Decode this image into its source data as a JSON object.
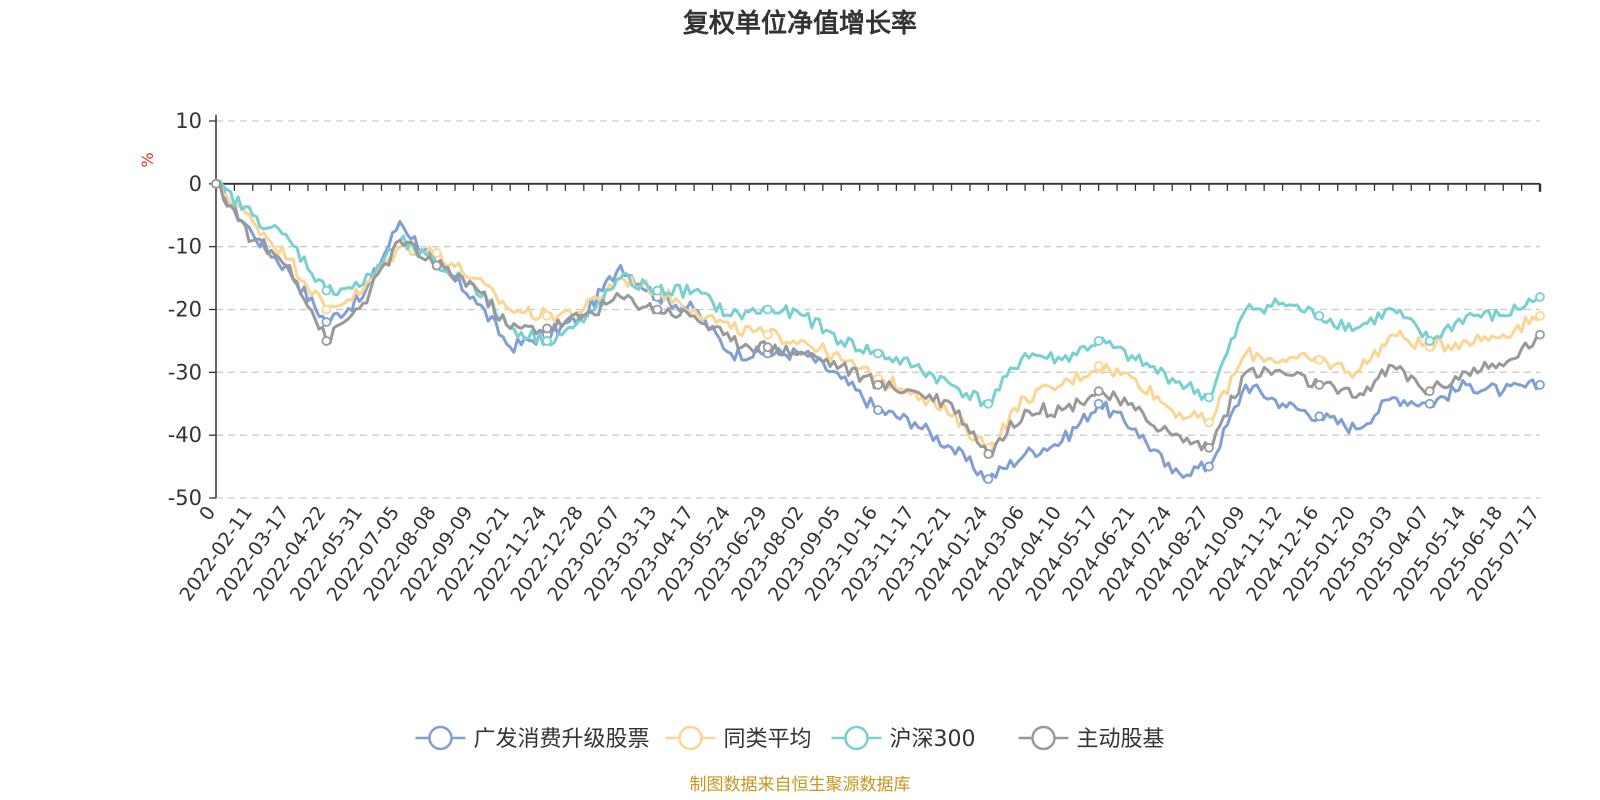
{
  "chart_data": {
    "type": "line",
    "title": "复权单位净值增长率",
    "ylabel": "%",
    "ylim": [
      -50,
      10
    ],
    "yticks": [
      10,
      0,
      -10,
      -20,
      -30,
      -40,
      -50
    ],
    "x_tick_labels": [
      "0",
      "2022-02-11",
      "2022-03-17",
      "2022-04-22",
      "2022-05-31",
      "2022-07-05",
      "2022-08-08",
      "2022-09-09",
      "2022-10-21",
      "2022-11-24",
      "2022-12-28",
      "2023-02-07",
      "2023-03-13",
      "2023-04-17",
      "2023-05-24",
      "2023-06-29",
      "2023-08-02",
      "2023-09-05",
      "2023-10-16",
      "2023-11-17",
      "2023-12-21",
      "2024-01-24",
      "2024-03-06",
      "2024-04-10",
      "2024-05-17",
      "2024-06-21",
      "2024-07-24",
      "2024-08-27",
      "2024-10-09",
      "2024-11-12",
      "2024-12-16",
      "2025-01-20",
      "2025-03-03",
      "2025-04-07",
      "2025-05-14",
      "2025-06-18",
      "2025-07-17"
    ],
    "grid": "horizontal dashed",
    "legend_position": "bottom",
    "series": [
      {
        "name": "广发消费升级股票",
        "color": "#7f9fd6",
        "values": [
          0,
          -8,
          -14,
          -22,
          -18,
          -6,
          -13,
          -18,
          -26,
          -24,
          -21,
          -13,
          -18,
          -20,
          -27,
          -27,
          -27,
          -31,
          -36,
          -38,
          -42,
          -47,
          -43,
          -41,
          -35,
          -39,
          -46,
          -45,
          -32,
          -35,
          -37,
          -39,
          -34,
          -35,
          -32,
          -33,
          -32
        ]
      },
      {
        "name": "同类平均",
        "color": "#fdd592",
        "values": [
          0,
          -6,
          -12,
          -20,
          -17,
          -10,
          -11,
          -15,
          -20,
          -21,
          -20,
          -15,
          -17,
          -20,
          -23,
          -24,
          -25,
          -28,
          -31,
          -33,
          -37,
          -42,
          -34,
          -32,
          -29,
          -31,
          -36,
          -38,
          -27,
          -28,
          -28,
          -30,
          -24,
          -26,
          -25,
          -24,
          -21
        ]
      },
      {
        "name": "沪深300",
        "color": "#78d0d0",
        "values": [
          0,
          -5,
          -9,
          -17,
          -16,
          -9,
          -13,
          -16,
          -23,
          -25,
          -22,
          -15,
          -17,
          -17,
          -21,
          -20,
          -21,
          -25,
          -27,
          -29,
          -32,
          -35,
          -27,
          -28,
          -25,
          -28,
          -31,
          -34,
          -20,
          -19,
          -21,
          -23,
          -20,
          -25,
          -21,
          -21,
          -18
        ]
      },
      {
        "name": "主动股基",
        "color": "#999999",
        "values": [
          0,
          -9,
          -13,
          -25,
          -19,
          -9,
          -13,
          -16,
          -23,
          -23,
          -21,
          -18,
          -20,
          -21,
          -25,
          -26,
          -27,
          -29,
          -32,
          -33,
          -35,
          -43,
          -36,
          -36,
          -33,
          -36,
          -40,
          -42,
          -30,
          -30,
          -32,
          -34,
          -29,
          -33,
          -30,
          -29,
          -24
        ]
      }
    ]
  },
  "source_note": "制图数据来自恒生聚源数据库"
}
